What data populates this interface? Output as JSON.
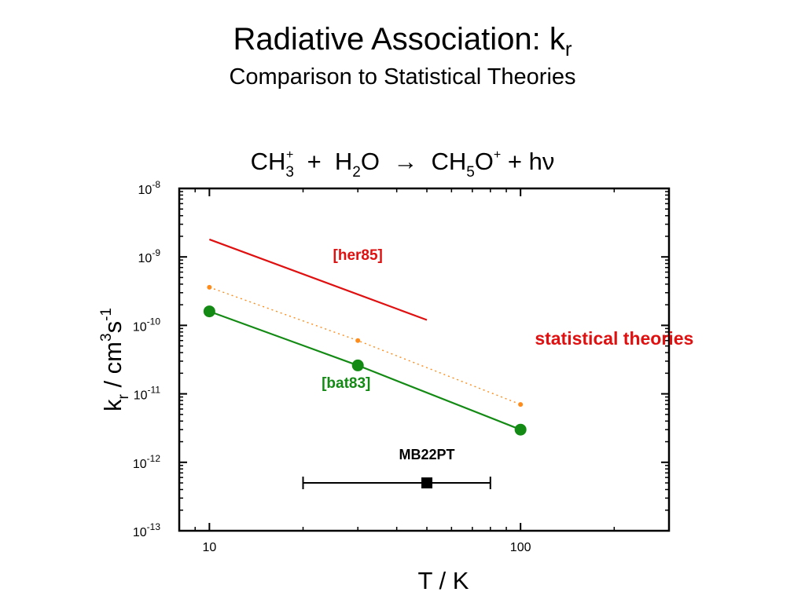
{
  "slide": {
    "title": "Radiative Association: k",
    "title_sub": "r",
    "subtitle": "Comparison to Statistical Theories"
  },
  "reaction": {
    "p1": "CH",
    "p1_sub": "3",
    "p1_sup": "+",
    "p2": "  +  H",
    "p2_sub": "2",
    "p3": "O  →  CH",
    "p3_sub": "5",
    "p4": "O",
    "p4_sup": "+",
    "p5": " + hν"
  },
  "ylabel": {
    "a": "k",
    "a_sub": "r",
    "b": " / cm",
    "b_sup": "3",
    "c": "s",
    "c_sup": "-1"
  },
  "xlabel": "T / K",
  "chart_data": {
    "type": "scatter",
    "x_scale": "log",
    "y_scale": "log",
    "xlim": [
      8,
      300
    ],
    "ylim": [
      1e-13,
      1e-08
    ],
    "xlabel": "T / K",
    "ylabel": "k_r / cm^3 s^-1",
    "x_tick_labels": [
      {
        "value": 10,
        "label": "10"
      },
      {
        "value": 100,
        "label": "100"
      }
    ],
    "y_tick_labels": [
      {
        "value": 1e-08,
        "base": "10",
        "exp": "-8"
      },
      {
        "value": 1e-09,
        "base": "10",
        "exp": "-9"
      },
      {
        "value": 1e-10,
        "base": "10",
        "exp": "-10"
      },
      {
        "value": 1e-11,
        "base": "10",
        "exp": "-11"
      },
      {
        "value": 1e-12,
        "base": "10",
        "exp": "-12"
      },
      {
        "value": 1e-13,
        "base": "10",
        "exp": "-13"
      }
    ],
    "grid": false,
    "series": [
      {
        "name": "[her85]",
        "color": "#e01010",
        "style": "solid-line",
        "points": [
          [
            10,
            1.8e-09
          ],
          [
            50,
            1.2e-10
          ]
        ]
      },
      {
        "name": "",
        "color": "#ff8c1a",
        "style": "dotted-line-small-markers",
        "points": [
          [
            10,
            3.6e-10
          ],
          [
            30,
            6e-11
          ],
          [
            100,
            7e-12
          ]
        ]
      },
      {
        "name": "[bat83]",
        "color": "#138a13",
        "style": "solid-line-large-markers",
        "points": [
          [
            10,
            1.6e-10
          ],
          [
            30,
            2.6e-11
          ],
          [
            100,
            3e-12
          ]
        ]
      },
      {
        "name": "MB22PT",
        "color": "#000000",
        "style": "square-with-x-errorbar",
        "points": [
          [
            50,
            5e-13
          ]
        ],
        "x_err": [
          20,
          80
        ]
      }
    ],
    "annotations": [
      {
        "text": "[her85]",
        "color": "#e01010",
        "at": [
          30,
          9e-10
        ]
      },
      {
        "text": "statistical theories",
        "color": "#e01010",
        "at": [
          200,
          5.2e-11
        ]
      },
      {
        "text": "[bat83]",
        "color": "#138a13",
        "at": [
          27.5,
          1.22e-11
        ]
      },
      {
        "text": "MB22PT",
        "color": "#000000",
        "at": [
          50,
          1.1e-12
        ]
      }
    ]
  }
}
